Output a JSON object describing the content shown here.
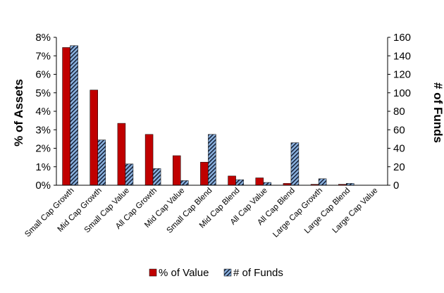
{
  "chart_data": {
    "type": "bar",
    "categories": [
      "Small Cap Growth",
      "Mid Cap Growth",
      "Small Cap Value",
      "All Cap Growth",
      "Mid Cap Value",
      "Small Cap Blend",
      "Mid Cap Blend",
      "All Cap Value",
      "All Cap Blend",
      "Large Cap Growth",
      "Large Cap Blend",
      "Large Cap Value"
    ],
    "xlabel": "",
    "ylabel_left": "% of Assets",
    "ylabel_right": "# of Funds",
    "ylim_left": [
      0,
      8
    ],
    "ylim_right": [
      0,
      160
    ],
    "yticks_left": [
      "0%",
      "1%",
      "2%",
      "3%",
      "4%",
      "5%",
      "6%",
      "7%",
      "8%"
    ],
    "yticks_right": [
      "0",
      "20",
      "40",
      "60",
      "80",
      "100",
      "120",
      "140",
      "160"
    ],
    "grid": false,
    "legend_position": "bottom",
    "series": [
      {
        "name": "% of Value",
        "axis": "left",
        "color": "#c00000",
        "values": [
          7.45,
          5.15,
          3.35,
          2.75,
          1.6,
          1.25,
          0.5,
          0.4,
          0.1,
          0.05,
          0.05,
          0.0
        ]
      },
      {
        "name": "# of Funds",
        "axis": "right",
        "color": "#8db4e2",
        "values": [
          151,
          49,
          23,
          18,
          5,
          55,
          6,
          3,
          46,
          7,
          2,
          0
        ]
      }
    ]
  }
}
